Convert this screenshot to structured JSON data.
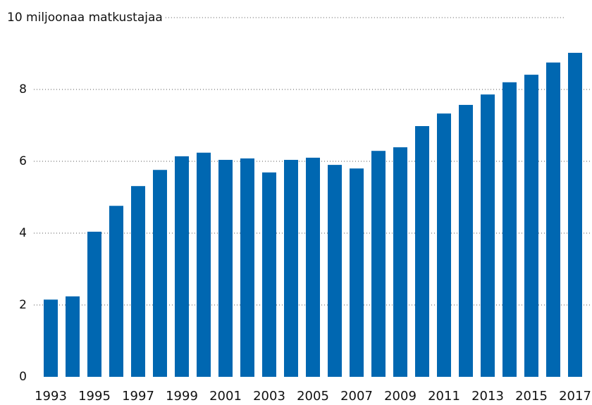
{
  "chart_data": {
    "type": "bar",
    "categories": [
      "1993",
      null,
      "1995",
      null,
      "1997",
      null,
      "1999",
      null,
      "2001",
      null,
      "2003",
      null,
      "2005",
      null,
      "2007",
      null,
      "2009",
      null,
      "2011",
      null,
      "2013",
      null,
      "2015",
      null,
      "2017"
    ],
    "values": [
      2.15,
      2.24,
      4.04,
      4.76,
      5.31,
      5.76,
      6.14,
      6.24,
      6.04,
      6.08,
      5.69,
      6.04,
      6.1,
      5.9,
      5.8,
      6.29,
      6.39,
      6.98,
      7.33,
      7.57,
      7.86,
      8.2,
      8.41,
      8.75,
      9.02
    ],
    "color": "#0067b1",
    "ylim": [
      0,
      10
    ],
    "yticks": [
      0,
      2,
      4,
      6,
      8,
      {
        "value": 10,
        "label": "10 miljoonaa matkustajaa"
      }
    ],
    "grid": true
  }
}
